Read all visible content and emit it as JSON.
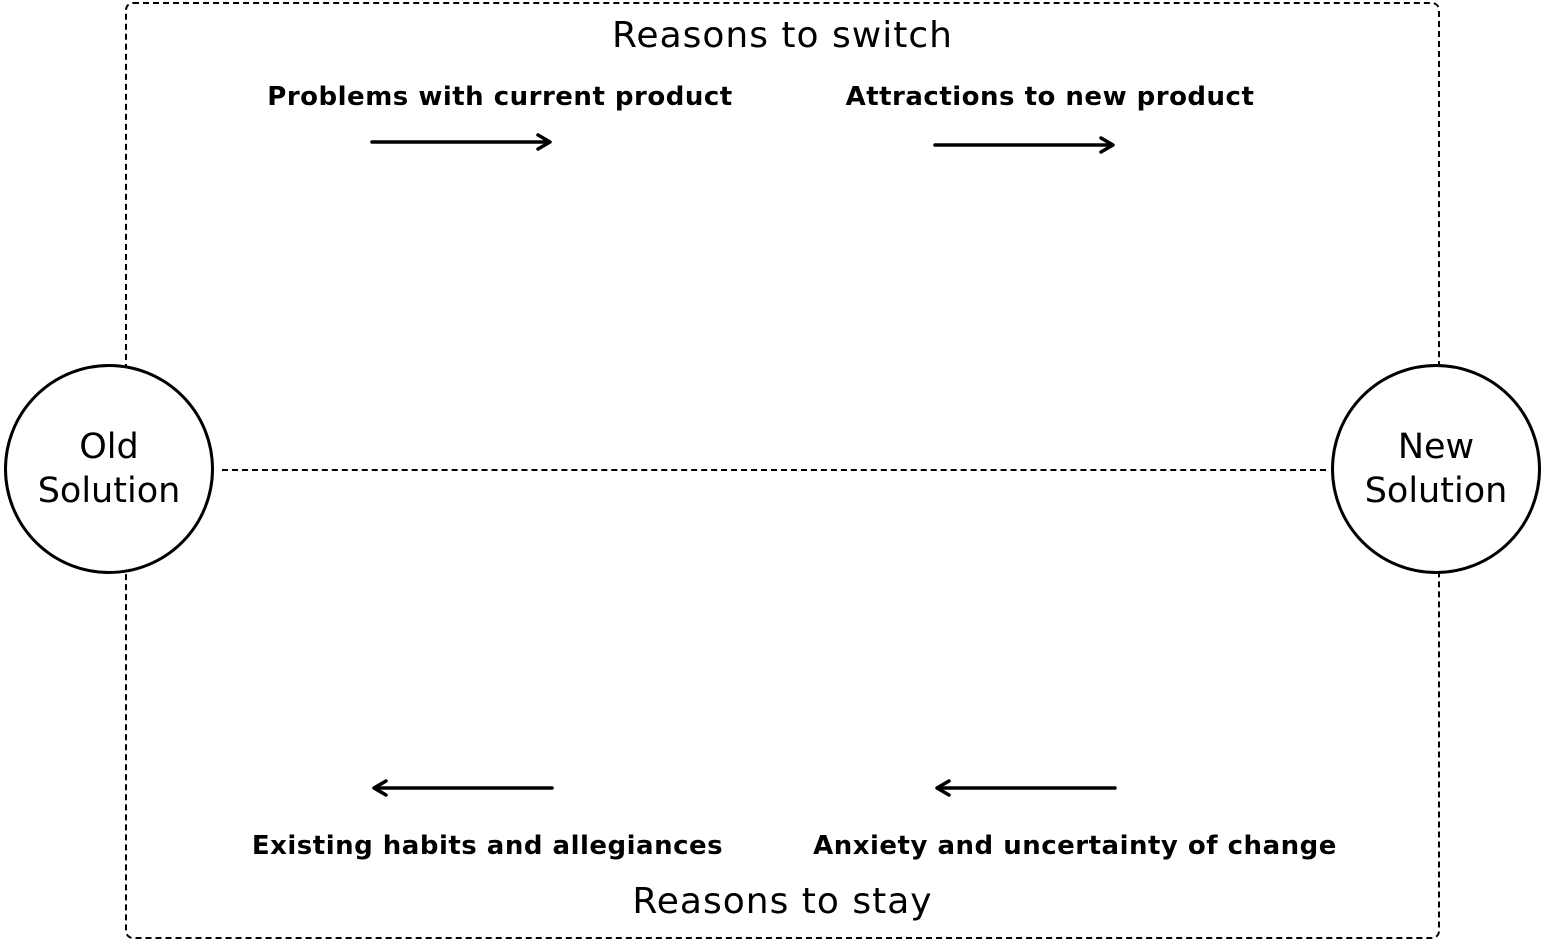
{
  "diagram": {
    "top_section": {
      "title": "Reasons to switch",
      "forces": [
        {
          "label": "Problems with current product",
          "direction": "right"
        },
        {
          "label": "Attractions to new product",
          "direction": "right"
        }
      ]
    },
    "bottom_section": {
      "title": "Reasons to stay",
      "forces": [
        {
          "label": "Existing habits and allegiances",
          "direction": "left"
        },
        {
          "label": "Anxiety and uncertainty of change",
          "direction": "left"
        }
      ]
    },
    "nodes": {
      "old": {
        "line1": "Old",
        "line2": "Solution"
      },
      "new": {
        "line1": "New",
        "line2": "Solution"
      }
    }
  }
}
